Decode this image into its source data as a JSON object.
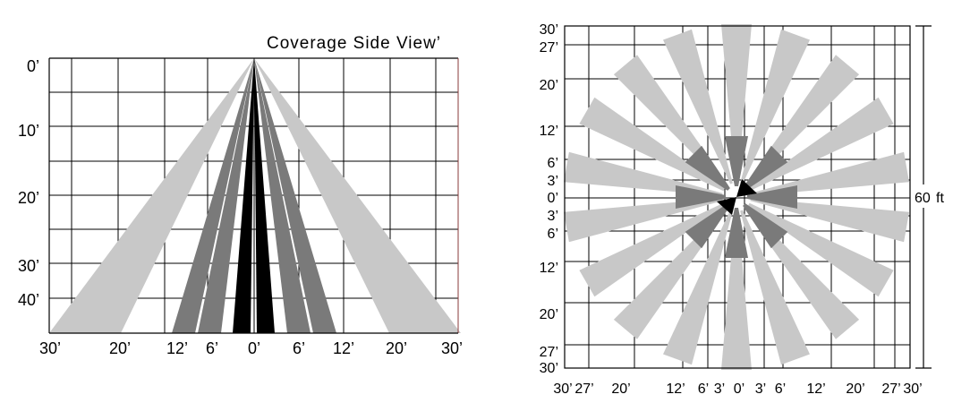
{
  "side_view": {
    "title": "Coverage Side View’",
    "y_labels": [
      "0’",
      "10’",
      "20’",
      "30’",
      "40’"
    ],
    "x_labels": [
      "30’",
      "20’",
      "12’",
      "6’",
      "0’",
      "6’",
      "12’",
      "20’",
      "30’"
    ]
  },
  "top_view": {
    "y_labels": [
      "30’",
      "27’",
      "20’",
      "12’",
      "6’",
      "3’",
      "0’",
      "3’",
      "6’",
      "12’",
      "20’",
      "27’",
      "30’"
    ],
    "x_labels": [
      "30’",
      "27’",
      "20’",
      "12’",
      "6’",
      "3’",
      "0’",
      "3’",
      "6’",
      "12’",
      "20’",
      "27’",
      "30’"
    ],
    "dimension_value": "60",
    "dimension_unit": "ft"
  },
  "colors": {
    "far_zone": "#c8c8c8",
    "mid_zone": "#7a7a7a",
    "near_zone": "#000000",
    "grid": "#000000"
  }
}
